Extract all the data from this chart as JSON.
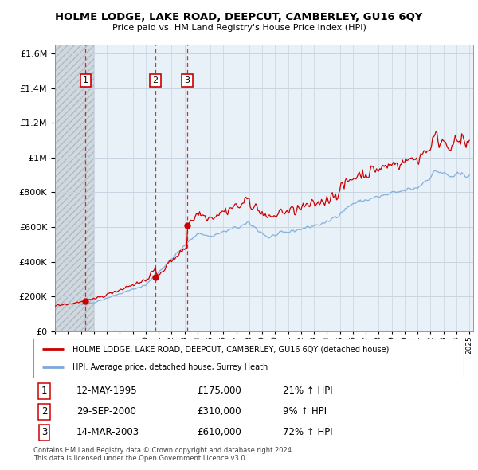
{
  "title": "HOLME LODGE, LAKE ROAD, DEEPCUT, CAMBERLEY, GU16 6QY",
  "subtitle": "Price paid vs. HM Land Registry's House Price Index (HPI)",
  "sale_dates_num": [
    1995.36,
    2000.75,
    2003.21
  ],
  "sale_prices": [
    175000,
    310000,
    610000
  ],
  "sale_labels": [
    "1",
    "2",
    "3"
  ],
  "sale_dates_str": [
    "12-MAY-1995",
    "29-SEP-2000",
    "14-MAR-2003"
  ],
  "sale_prices_str": [
    "£175,000",
    "£310,000",
    "£610,000"
  ],
  "sale_pct": [
    "21% ↑ HPI",
    "9% ↑ HPI",
    "72% ↑ HPI"
  ],
  "legend_line1": "HOLME LODGE, LAKE ROAD, DEEPCUT, CAMBERLEY, GU16 6QY (detached house)",
  "legend_line2": "HPI: Average price, detached house, Surrey Heath",
  "footer1": "Contains HM Land Registry data © Crown copyright and database right 2024.",
  "footer2": "This data is licensed under the Open Government Licence v3.0.",
  "red_color": "#cc0000",
  "blue_color": "#7aaadd",
  "ylim": [
    0,
    1650000
  ],
  "xlim_start": 1993.0,
  "xlim_end": 2025.3
}
